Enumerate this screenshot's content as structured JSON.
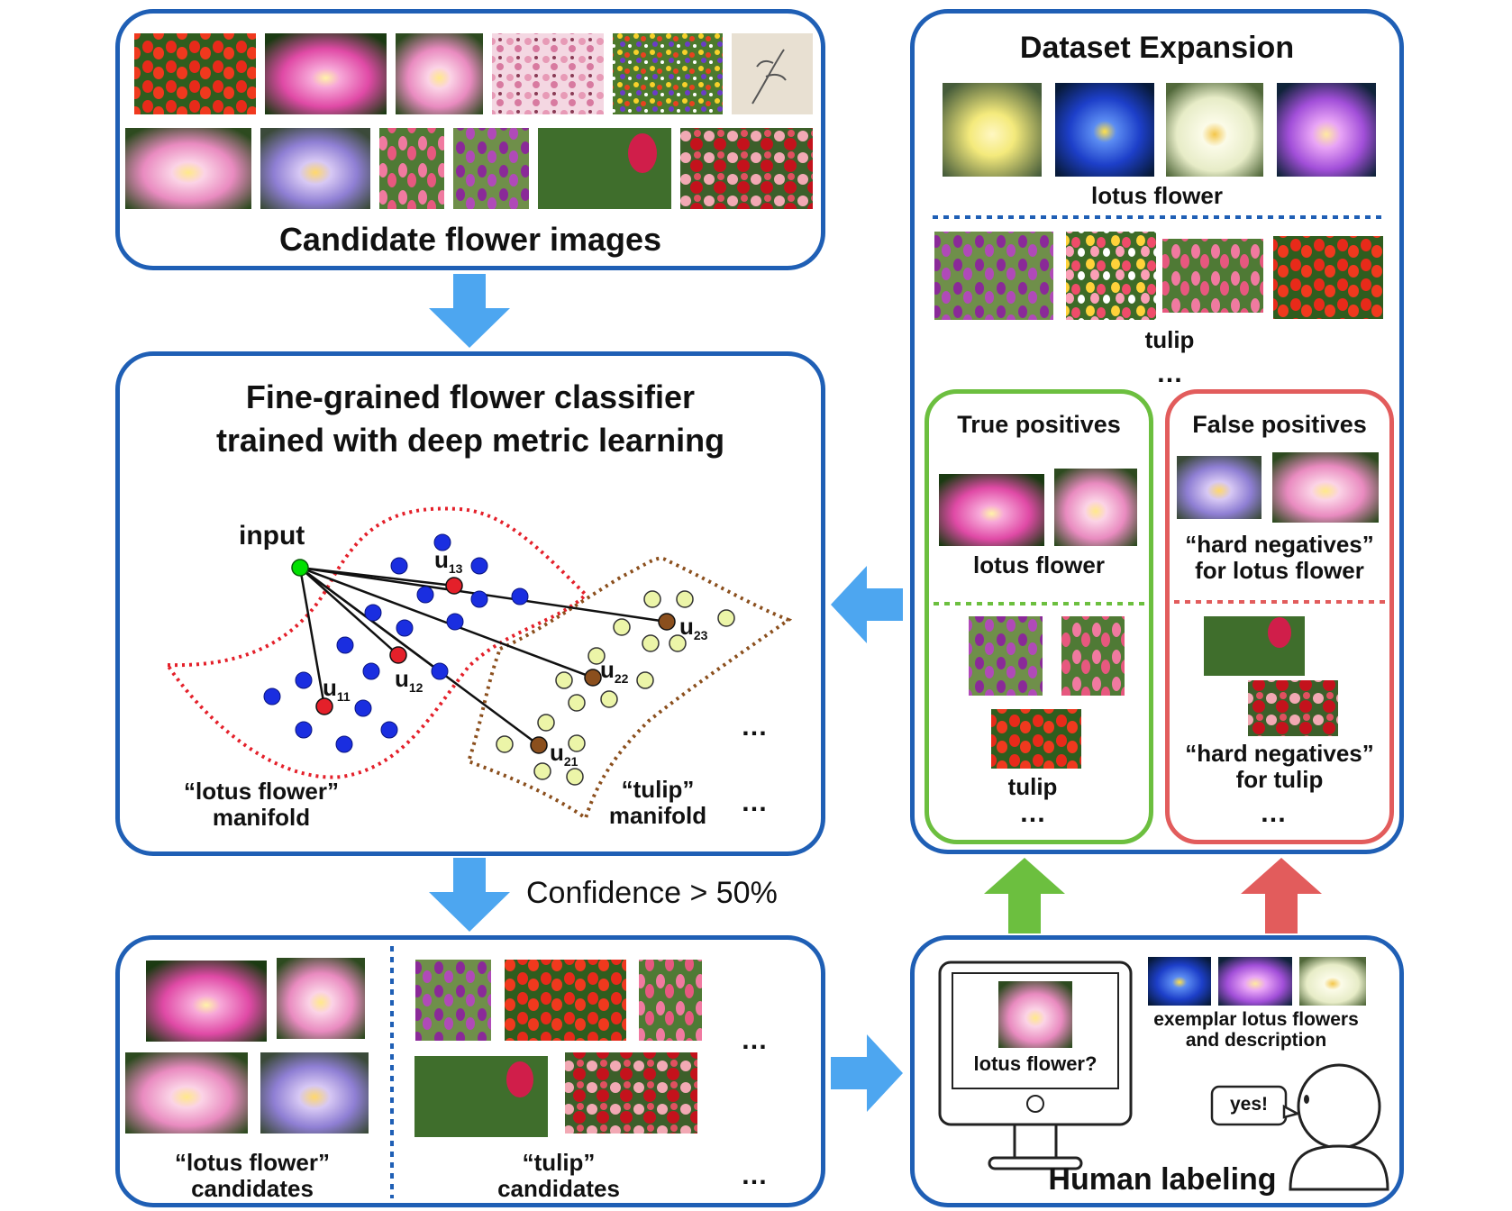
{
  "candidates": {
    "title": "Candidate flower images"
  },
  "classifier": {
    "title_line1": "Fine-grained flower classifier",
    "title_line2": "trained with deep metric learning",
    "input_label": "input",
    "u11": "u",
    "u11_sub": "11",
    "u12": "u",
    "u12_sub": "12",
    "u13": "u",
    "u13_sub": "13",
    "u21": "u",
    "u21_sub": "21",
    "u22": "u",
    "u22_sub": "22",
    "u23": "u",
    "u23_sub": "23",
    "lotus_manifold_l1": "“lotus flower”",
    "lotus_manifold_l2": "manifold",
    "tulip_manifold_l1": "“tulip”",
    "tulip_manifold_l2": "manifold",
    "ellipsis": "…"
  },
  "confidence": "Confidence > 50%",
  "filtered": {
    "lotus_l1": "“lotus flower”",
    "lotus_l2": "candidates",
    "tulip_l1": "“tulip”",
    "tulip_l2": "candidates",
    "ellipsis": "…"
  },
  "expansion": {
    "title": "Dataset Expansion",
    "lotus_label": "lotus flower",
    "tulip_label": "tulip",
    "ellipsis": "…",
    "true_pos": {
      "title": "True positives",
      "lotus": "lotus flower",
      "tulip": "tulip",
      "ellipsis": "…"
    },
    "false_pos": {
      "title": "False positives",
      "lotus_l1": "“hard negatives”",
      "lotus_l2": "for lotus flower",
      "tulip_l1": "“hard negatives”",
      "tulip_l2": "for tulip",
      "ellipsis": "…"
    }
  },
  "labeling": {
    "title": "Human labeling",
    "question": "lotus flower?",
    "exemplar_l1": "exemplar lotus flowers",
    "exemplar_l2": "and description",
    "reply": "yes!"
  },
  "colors": {
    "frame": "#1f5fb5",
    "arrow": "#4da6f0",
    "green": "#6cbf3f",
    "red": "#e25c5c",
    "dot_blue": "#1a2ee0",
    "dot_red": "#e4202a",
    "dot_green": "#00e000",
    "dot_brown": "#8b4f1d",
    "dot_lime": "#ecf5a8"
  }
}
